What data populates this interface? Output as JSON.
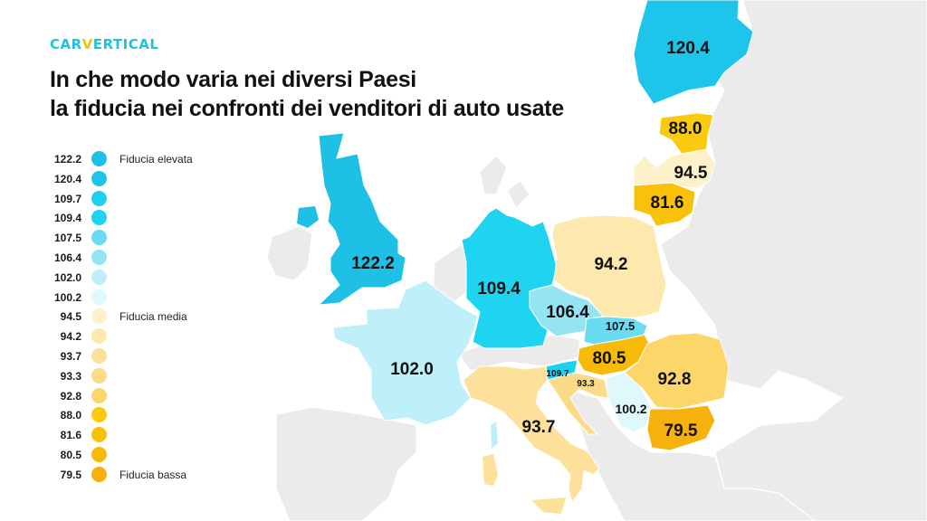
{
  "brand": {
    "logo_pre": "CAR",
    "logo_v": "V",
    "logo_post": "ERTICAL"
  },
  "title": {
    "line1": "In che modo varia nei diversi Paesi",
    "line2": "la fiducia nei confronti dei venditori di auto usate"
  },
  "colors": {
    "background_land": "#ebebeb",
    "sea": "#ffffff",
    "high": "#1dc7e8",
    "low": "#f7b000"
  },
  "legend": [
    {
      "value": "122.2",
      "color": "#1ec0e6",
      "label": "Fiducia elevata"
    },
    {
      "value": "120.4",
      "color": "#1ec5ea",
      "label": ""
    },
    {
      "value": "109.7",
      "color": "#1cd0ee",
      "label": ""
    },
    {
      "value": "109.4",
      "color": "#1fd4f0",
      "label": ""
    },
    {
      "value": "107.5",
      "color": "#6adcf2",
      "label": ""
    },
    {
      "value": "106.4",
      "color": "#95e4f4",
      "label": ""
    },
    {
      "value": "102.0",
      "color": "#bff0fa",
      "label": ""
    },
    {
      "value": "100.2",
      "color": "#def8fc",
      "label": ""
    },
    {
      "value": "94.5",
      "color": "#fdf1c9",
      "label": "Fiducia media"
    },
    {
      "value": "94.2",
      "color": "#fde9ad",
      "label": ""
    },
    {
      "value": "93.7",
      "color": "#fde19a",
      "label": ""
    },
    {
      "value": "93.3",
      "color": "#fcdb86",
      "label": ""
    },
    {
      "value": "92.8",
      "color": "#fdd66a",
      "label": ""
    },
    {
      "value": "88.0",
      "color": "#f9ca10",
      "label": ""
    },
    {
      "value": "81.6",
      "color": "#f8c10a",
      "label": ""
    },
    {
      "value": "80.5",
      "color": "#f7ba08",
      "label": ""
    },
    {
      "value": "79.5",
      "color": "#f6b10c",
      "label": "Fiducia bassa"
    }
  ],
  "countries": {
    "uk": {
      "value": "122.2",
      "color": "#1ec0e6"
    },
    "finland": {
      "value": "120.4",
      "color": "#1ec5ea"
    },
    "slovenia": {
      "value": "109.7",
      "color": "#1cd0ee"
    },
    "germany": {
      "value": "109.4",
      "color": "#1fd4f0"
    },
    "slovakia": {
      "value": "107.5",
      "color": "#6adcf2"
    },
    "czechia": {
      "value": "106.4",
      "color": "#95e4f4"
    },
    "france": {
      "value": "102.0",
      "color": "#bff0fa"
    },
    "serbia": {
      "value": "100.2",
      "color": "#def8fc"
    },
    "latvia": {
      "value": "94.5",
      "color": "#fdf1c9"
    },
    "poland": {
      "value": "94.2",
      "color": "#fde9ad"
    },
    "italy": {
      "value": "93.7",
      "color": "#fde19a"
    },
    "croatia": {
      "value": "93.3",
      "color": "#fcdb86"
    },
    "romania": {
      "value": "92.8",
      "color": "#fdd66a"
    },
    "estonia": {
      "value": "88.0",
      "color": "#f9ca10"
    },
    "lithuania": {
      "value": "81.6",
      "color": "#f8c10a"
    },
    "hungary": {
      "value": "80.5",
      "color": "#f7ba08"
    },
    "bulgaria": {
      "value": "79.5",
      "color": "#f6b10c"
    }
  }
}
